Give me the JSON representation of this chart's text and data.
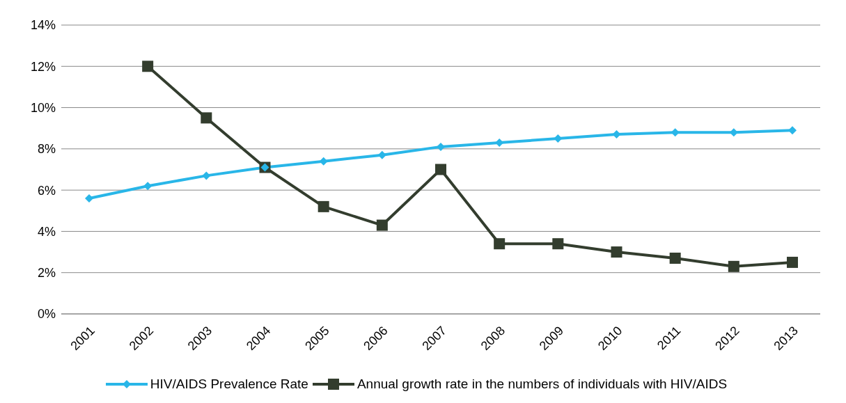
{
  "chart_data": {
    "type": "line",
    "categories": [
      "2001",
      "2002",
      "2003",
      "2004",
      "2005",
      "2006",
      "2007",
      "2008",
      "2009",
      "2010",
      "2011",
      "2012",
      "2013"
    ],
    "series": [
      {
        "name": "HIV/AIDS Prevalence Rate",
        "color": "#29b6e8",
        "marker": "diamond",
        "values": [
          5.6,
          6.2,
          6.7,
          7.1,
          7.4,
          7.7,
          8.1,
          8.3,
          8.5,
          8.7,
          8.8,
          8.8,
          8.9
        ]
      },
      {
        "name": "Annual growth rate in the numbers of individuals with HIV/AIDS",
        "color": "#333d2e",
        "marker": "square",
        "values": [
          null,
          12.0,
          9.5,
          7.1,
          5.2,
          4.3,
          7.0,
          3.4,
          3.4,
          3.0,
          2.7,
          2.3,
          2.5
        ]
      }
    ],
    "ylim": [
      0,
      14
    ],
    "yticks": [
      {
        "value": 0,
        "label": "0%"
      },
      {
        "value": 2,
        "label": "2%"
      },
      {
        "value": 4,
        "label": "4%"
      },
      {
        "value": 6,
        "label": "6%"
      },
      {
        "value": 8,
        "label": "8%"
      },
      {
        "value": 10,
        "label": "10%"
      },
      {
        "value": 12,
        "label": "12%"
      },
      {
        "value": 14,
        "label": "14%"
      }
    ],
    "grid": "y",
    "legend": "bottom"
  }
}
